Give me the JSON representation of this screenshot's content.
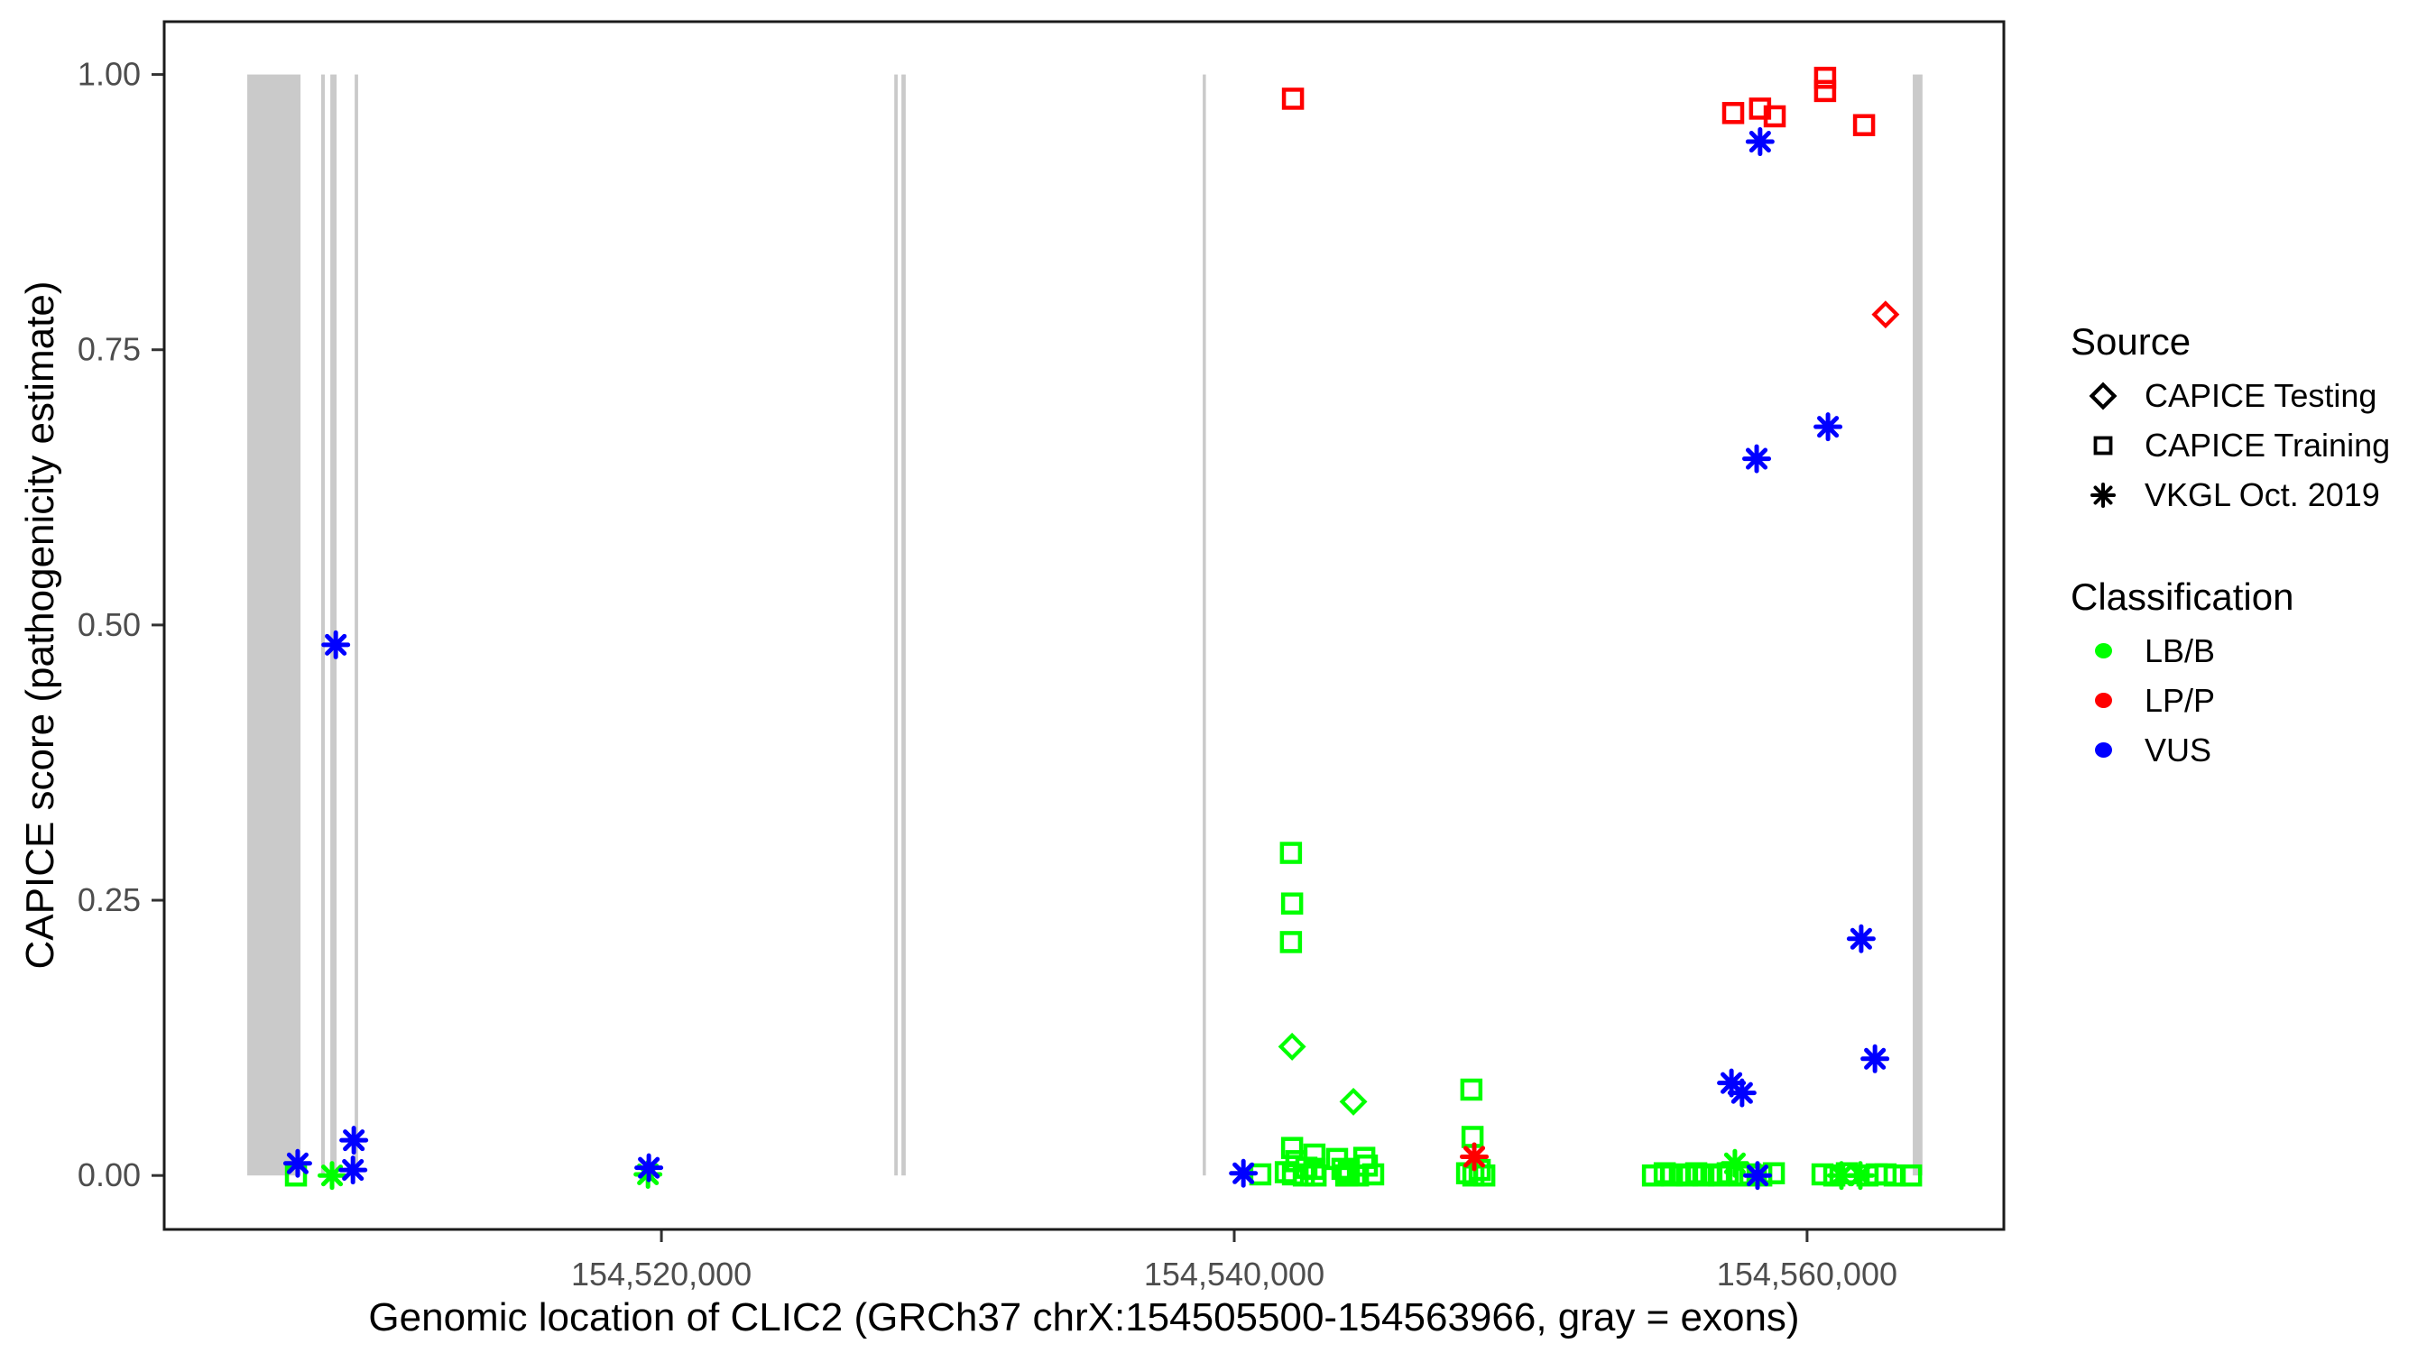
{
  "legend": {
    "source_title": "Source",
    "source_items": [
      {
        "label": "CAPICE Testing",
        "shape": "diamond"
      },
      {
        "label": "CAPICE Training",
        "shape": "square"
      },
      {
        "label": "VKGL Oct. 2019",
        "shape": "asterisk"
      }
    ],
    "classification_title": "Classification",
    "classification_items": [
      {
        "label": "LB/B",
        "color": "#00FF00"
      },
      {
        "label": "LP/P",
        "color": "#FF0000"
      },
      {
        "label": "VUS",
        "color": "#0000FF"
      }
    ]
  },
  "chart_data": {
    "type": "scatter",
    "title": "",
    "xlabel": "Genomic location of CLIC2 (GRCh37 chrX:154505500-154563966, gray = exons)",
    "ylabel": "CAPICE score (pathogenicity estimate)",
    "xlim": [
      154502640,
      154566870
    ],
    "ylim": [
      -0.049,
      1.048
    ],
    "grid": false,
    "legend_position": "right",
    "x_ticks": [
      {
        "value": 154520000,
        "label": "154,520,000"
      },
      {
        "value": 154540000,
        "label": "154,540,000"
      },
      {
        "value": 154560000,
        "label": "154,560,000"
      }
    ],
    "y_ticks": [
      {
        "value": 0.0,
        "label": "0.00"
      },
      {
        "value": 0.25,
        "label": "0.25"
      },
      {
        "value": 0.5,
        "label": "0.50"
      },
      {
        "value": 0.75,
        "label": "0.75"
      },
      {
        "value": 1.0,
        "label": "1.00"
      }
    ],
    "style": {
      "exon_color": "#CACACA",
      "border_color": "#1b1b1b",
      "tick_text_color": "#4D4D4D",
      "lbb_color": "#00FF00",
      "lpp_color": "#FF0000",
      "vus_color": "#0000FF"
    },
    "exons": [
      [
        154505540,
        154507400
      ],
      [
        154508120,
        154508250
      ],
      [
        154508440,
        154508660
      ],
      [
        154509290,
        154509410
      ],
      [
        154528130,
        154528250
      ],
      [
        154528380,
        154528530
      ],
      [
        154538900,
        154538990
      ],
      [
        154563690,
        154564030
      ]
    ],
    "series": [
      {
        "name": "CAPICE Training / LP/P",
        "source": "CAPICE Training",
        "classification": "LP/P",
        "shape": "square",
        "color": "#FF0000",
        "points": [
          [
            154543940,
            0.0
          ],
          [
            154542050,
            0.978
          ],
          [
            154557420,
            0.965
          ],
          [
            154558360,
            0.969
          ],
          [
            154558870,
            0.962
          ],
          [
            154560630,
            0.997
          ],
          [
            154560630,
            0.985
          ],
          [
            154561990,
            0.954
          ]
        ]
      },
      {
        "name": "CAPICE Training / LB/B",
        "source": "CAPICE Training",
        "classification": "LB/B",
        "shape": "square",
        "color": "#00FF00",
        "points": [
          [
            154507240,
            0.0
          ],
          [
            154540910,
            0.001
          ],
          [
            154541800,
            0.003
          ],
          [
            154542020,
            0.025
          ],
          [
            154542050,
            0.001
          ],
          [
            154542170,
            0.013
          ],
          [
            154542430,
            0.0
          ],
          [
            154542520,
            0.007
          ],
          [
            154542800,
            0.019
          ],
          [
            154542800,
            0.006
          ],
          [
            154542840,
            0.0
          ],
          [
            154543590,
            0.015
          ],
          [
            154543780,
            0.006
          ],
          [
            154543910,
            0.0
          ],
          [
            154544000,
            0.003
          ],
          [
            154544320,
            0.0
          ],
          [
            154544540,
            0.016
          ],
          [
            154544630,
            0.009
          ],
          [
            154544850,
            0.001
          ],
          [
            154541980,
            0.293
          ],
          [
            154542020,
            0.247
          ],
          [
            154541980,
            0.212
          ],
          [
            154548280,
            0.078
          ],
          [
            154548320,
            0.035
          ],
          [
            154548130,
            0.002
          ],
          [
            154548350,
            0.0
          ],
          [
            154548570,
            0.005
          ],
          [
            154548730,
            0.0
          ],
          [
            154554620,
            0.0
          ],
          [
            154555030,
            0.002
          ],
          [
            154555280,
            0.0
          ],
          [
            154555560,
            0.001
          ],
          [
            154555810,
            0.0
          ],
          [
            154556130,
            0.002
          ],
          [
            154556380,
            0.0
          ],
          [
            154556660,
            0.001
          ],
          [
            154556920,
            0.0
          ],
          [
            154557230,
            0.002
          ],
          [
            154557640,
            0.0
          ],
          [
            154558020,
            0.001
          ],
          [
            154558400,
            0.0
          ],
          [
            154558840,
            0.002
          ],
          [
            154560540,
            0.001
          ],
          [
            154560950,
            0.0
          ],
          [
            154561390,
            0.002
          ],
          [
            154562110,
            0.0
          ],
          [
            154562430,
            0.001
          ],
          [
            154563060,
            0.0
          ],
          [
            154562740,
            0.001
          ],
          [
            154563630,
            0.0
          ]
        ]
      },
      {
        "name": "CAPICE Testing / LB/B",
        "source": "CAPICE Testing",
        "classification": "LB/B",
        "shape": "diamond",
        "color": "#00FF00",
        "points": [
          [
            154542020,
            0.117
          ],
          [
            154544160,
            0.067
          ]
        ]
      },
      {
        "name": "CAPICE Testing / LP/P",
        "source": "CAPICE Testing",
        "classification": "LP/P",
        "shape": "diamond",
        "color": "#FF0000",
        "points": [
          [
            154562740,
            0.782
          ]
        ]
      },
      {
        "name": "VKGL Oct. 2019 / LB/B",
        "source": "VKGL Oct. 2019",
        "classification": "LB/B",
        "shape": "asterisk",
        "color": "#00FF00",
        "points": [
          [
            154508500,
            0.0
          ],
          [
            154519530,
            0.001
          ],
          [
            154557480,
            0.011
          ],
          [
            154561200,
            0.0
          ],
          [
            154561860,
            0.0
          ]
        ]
      },
      {
        "name": "VKGL Oct. 2019 / LP/P",
        "source": "VKGL Oct. 2019",
        "classification": "LP/P",
        "shape": "asterisk",
        "color": "#FF0000",
        "points": [
          [
            154548380,
            0.017
          ]
        ]
      },
      {
        "name": "VKGL Oct. 2019 / VUS",
        "source": "VKGL Oct. 2019",
        "classification": "VUS",
        "shape": "asterisk",
        "color": "#0000FF",
        "points": [
          [
            154507300,
            0.011
          ],
          [
            154509230,
            0.005
          ],
          [
            154509260,
            0.032
          ],
          [
            154508630,
            0.482
          ],
          [
            154519560,
            0.007
          ],
          [
            154540320,
            0.002
          ],
          [
            154558270,
            0.0
          ],
          [
            154558360,
            0.939
          ],
          [
            154560730,
            0.68
          ],
          [
            154558240,
            0.651
          ],
          [
            154561890,
            0.215
          ],
          [
            154562370,
            0.106
          ],
          [
            154557360,
            0.084
          ],
          [
            154557730,
            0.075
          ]
        ]
      }
    ]
  }
}
